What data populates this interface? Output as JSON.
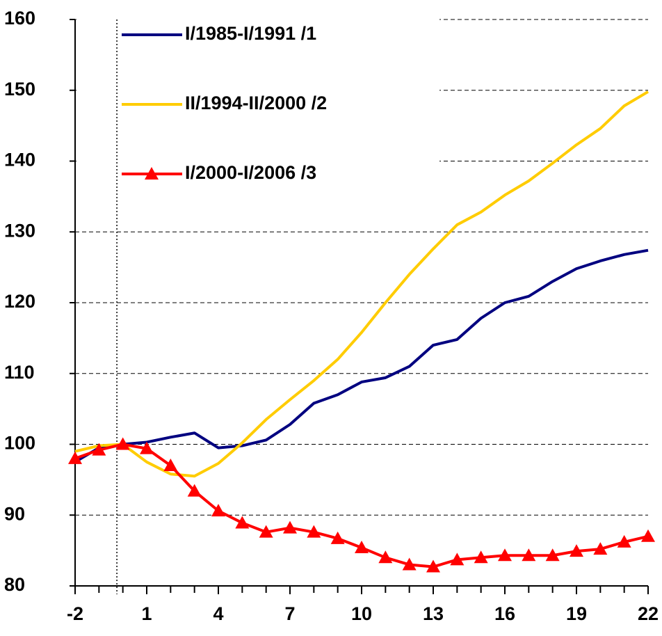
{
  "chart_data": {
    "type": "line",
    "x": [
      -2,
      -1,
      0,
      1,
      2,
      3,
      4,
      5,
      6,
      7,
      8,
      9,
      10,
      11,
      12,
      13,
      14,
      15,
      16,
      17,
      18,
      19,
      20,
      21,
      22
    ],
    "series": [
      {
        "name": "I/1985-I/1991 /1",
        "color": "#000080",
        "marker": false,
        "values": [
          97.5,
          99.5,
          100,
          100.3,
          101,
          101.6,
          99.5,
          99.8,
          100.6,
          102.8,
          105.8,
          107,
          108.8,
          109.4,
          111,
          114,
          114.8,
          117.8,
          120,
          120.9,
          123,
          124.8,
          125.9,
          126.8,
          127.4
        ]
      },
      {
        "name": "II/1994-II/2000 /2",
        "color": "#FFCC00",
        "marker": false,
        "values": [
          99,
          99.8,
          100,
          97.5,
          95.8,
          95.5,
          97.3,
          100.2,
          103.5,
          106.3,
          109,
          112,
          115.8,
          120,
          124,
          127.6,
          131,
          132.8,
          135.2,
          137.2,
          139.7,
          142.3,
          144.6,
          147.8,
          149.8
        ]
      },
      {
        "name": "I/2000-I/2006 /3",
        "color": "#FF0000",
        "marker": true,
        "values": [
          98,
          99.2,
          100,
          99.4,
          97,
          93.4,
          90.6,
          88.9,
          87.6,
          88.2,
          87.6,
          86.7,
          85.4,
          84,
          83,
          82.7,
          83.7,
          84,
          84.3,
          84.3,
          84.3,
          84.9,
          85.2,
          86.2,
          87
        ]
      }
    ],
    "xlim": [
      -2,
      22
    ],
    "xticks": [
      -2,
      1,
      4,
      7,
      10,
      13,
      16,
      19,
      22
    ],
    "ylim": [
      80,
      160
    ],
    "yticks": [
      80,
      90,
      100,
      110,
      120,
      130,
      140,
      150,
      160
    ],
    "reference_line_x": -0.25,
    "grid": true,
    "legend": "top-left"
  }
}
